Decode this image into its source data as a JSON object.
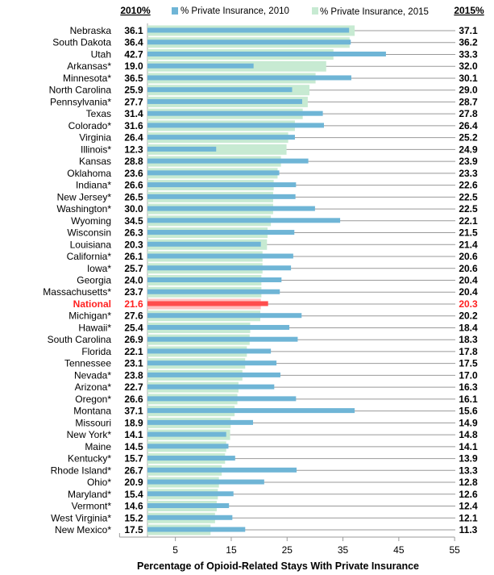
{
  "chart_data": {
    "type": "bar",
    "orientation": "horizontal",
    "xlabel": "Percentage of Opioid-Related Stays With Private Insurance",
    "left_column_header": "2010%",
    "right_column_header": "2015%",
    "x_ticks": [
      5,
      15,
      25,
      35,
      45,
      55
    ],
    "xlim": [
      -5,
      55
    ],
    "grid": false,
    "legend_placement": "top",
    "highlight_category": "National",
    "colors": {
      "2010": "#6fb5d6",
      "2015": "#c7ead2",
      "national_2010": "#ff4d4d",
      "national_2015": "#ffc0c0",
      "national_text": "#ff2020"
    },
    "categories": [
      "Nebraska",
      "South Dakota",
      "Utah",
      "Arkansas*",
      "Minnesota*",
      "North Carolina",
      "Pennsylvania*",
      "Texas",
      "Colorado*",
      "Virginia",
      "Illinois*",
      "Kansas",
      "Oklahoma",
      "Indiana*",
      "New Jersey*",
      "Washington*",
      "Wyoming",
      "Wisconsin",
      "Louisiana",
      "California*",
      "Iowa*",
      "Georgia",
      "Massachusetts*",
      "National",
      "Michigan*",
      "Hawaii*",
      "South Carolina",
      "Florida",
      "Tennessee",
      "Nevada*",
      "Arizona*",
      "Oregon*",
      "Montana",
      "Missouri",
      "New York*",
      "Maine",
      "Kentucky*",
      "Rhode Island*",
      "Ohio*",
      "Maryland*",
      "Vermont*",
      "West Virginia*",
      "New Mexico*"
    ],
    "series": [
      {
        "name": "% Private Insurance, 2010",
        "values": [
          36.1,
          36.4,
          42.7,
          19.0,
          36.5,
          25.9,
          27.7,
          31.4,
          31.6,
          26.4,
          12.3,
          28.8,
          23.6,
          26.6,
          26.5,
          30.0,
          34.5,
          26.3,
          20.3,
          26.1,
          25.7,
          24.0,
          23.7,
          21.6,
          27.6,
          25.4,
          26.9,
          22.1,
          23.1,
          23.8,
          22.7,
          26.6,
          37.1,
          18.9,
          14.1,
          14.5,
          15.7,
          26.7,
          20.9,
          15.4,
          14.6,
          15.2,
          17.5
        ]
      },
      {
        "name": "% Private Insurance, 2015",
        "values": [
          37.1,
          36.2,
          33.3,
          32.0,
          30.1,
          29.0,
          28.7,
          27.8,
          26.4,
          25.2,
          24.9,
          23.9,
          23.3,
          22.6,
          22.5,
          22.5,
          22.1,
          21.5,
          21.4,
          20.6,
          20.6,
          20.4,
          20.4,
          20.3,
          20.2,
          18.4,
          18.3,
          17.8,
          17.5,
          17.0,
          16.3,
          16.1,
          15.6,
          14.9,
          14.8,
          14.1,
          13.9,
          13.3,
          12.8,
          12.6,
          12.4,
          12.1,
          11.3
        ]
      }
    ]
  }
}
